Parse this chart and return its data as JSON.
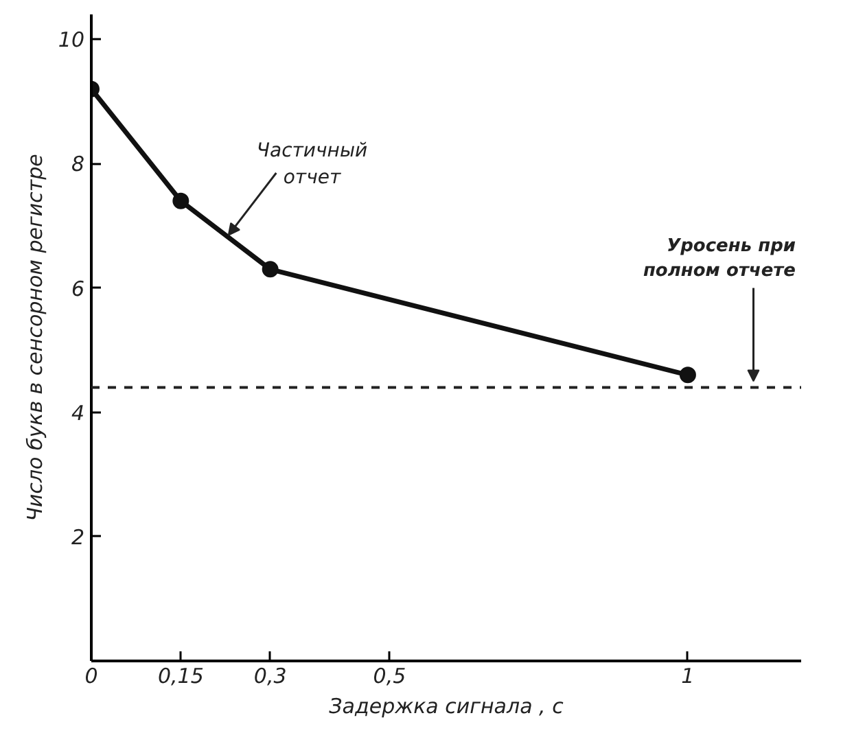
{
  "chart_data": {
    "type": "line",
    "xlabel": "Задержка сигнала , с",
    "ylabel": "Число букв в сенсорном регистре",
    "x": [
      0,
      0.15,
      0.3,
      1
    ],
    "series": [
      {
        "color": "#111111",
        "values": [
          9.2,
          7.4,
          6.3,
          4.6
        ]
      }
    ],
    "marker": "circle",
    "line_style": "solid",
    "grid": false,
    "xlim": [
      0,
      1.19
    ],
    "ylim": [
      0,
      10.4
    ],
    "xticks": [
      0,
      {
        "value": 0.15,
        "label": "0,15"
      },
      {
        "value": 0.3,
        "label": "0,3"
      },
      {
        "value": 0.5,
        "label": "0,5"
      },
      1
    ],
    "yticks": [
      2,
      4,
      6,
      8,
      10
    ],
    "ref_lines": [
      {
        "axis": "y",
        "value": 4.4,
        "label": "Уросень при\nполном отчете",
        "line_style": "dashed",
        "color": "#222222"
      }
    ],
    "annotations": [
      {
        "text": "Частичный\nотчет",
        "x": 0.23,
        "y": 6.85
      }
    ]
  }
}
